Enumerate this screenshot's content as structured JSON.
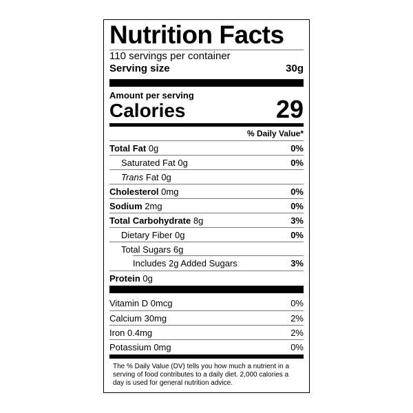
{
  "title": "Nutrition Facts",
  "servings": "110 servings per container",
  "serving_size_label": "Serving size",
  "serving_size_value": "30g",
  "amount_per_serving": "Amount per serving",
  "calories_label": "Calories",
  "calories_value": "29",
  "dv_header": "% Daily Value*",
  "nutrients": [
    {
      "name": "Total Fat",
      "amount": "0g",
      "dv": "0%"
    },
    {
      "name": "Saturated Fat",
      "amount": "0g",
      "dv": "0%"
    },
    {
      "name": "Trans",
      "name_suffix": "Fat",
      "amount": "0g",
      "dv": ""
    },
    {
      "name": "Cholesterol",
      "amount": "0mg",
      "dv": "0%"
    },
    {
      "name": "Sodium",
      "amount": "2mg",
      "dv": "0%"
    },
    {
      "name": "Total Carbohydrate",
      "amount": "8g",
      "dv": "3%"
    },
    {
      "name": "Dietary Fiber",
      "amount": "0g",
      "dv": "0%"
    },
    {
      "name": "Total Sugars",
      "amount": "6g",
      "dv": ""
    },
    {
      "name": "Includes 2g Added Sugars",
      "amount": "",
      "dv": "3%"
    },
    {
      "name": "Protein",
      "amount": "0g",
      "dv": ""
    }
  ],
  "vitamins": [
    {
      "name": "Vitamin D",
      "amount": "0mcg",
      "dv": "0%"
    },
    {
      "name": "Calcium",
      "amount": "30mg",
      "dv": "2%"
    },
    {
      "name": "Iron",
      "amount": "0.4mg",
      "dv": "2%"
    },
    {
      "name": "Potassium",
      "amount": "0mg",
      "dv": "0%"
    }
  ],
  "footnote": "The % Daily Value (DV) tells you how much a nutrient in a serving of food contributes to a daily diet. 2,000 calories a day is used for general nutrition advice."
}
